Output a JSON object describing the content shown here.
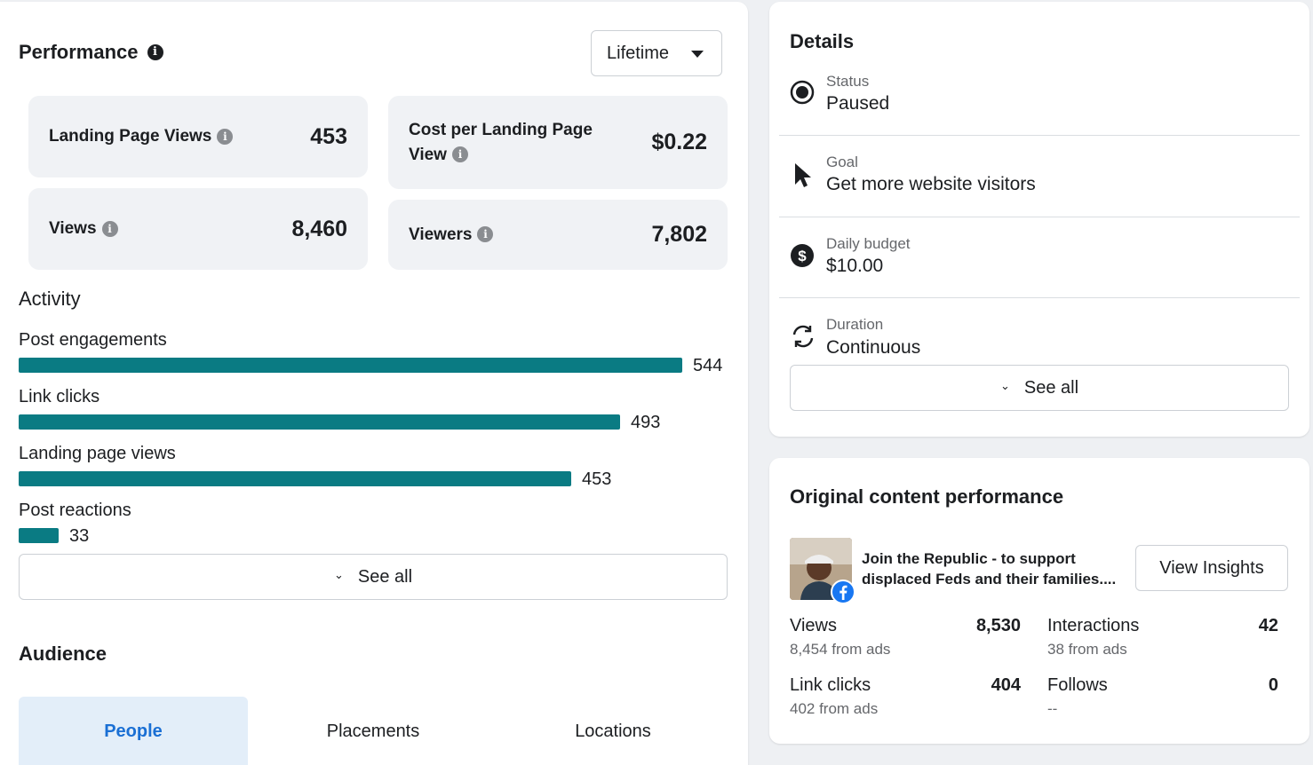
{
  "colors": {
    "bar": "#0a7b83",
    "tab_active_bg": "#e3eef9",
    "tab_active_text": "#1a6fd4",
    "facebook_blue": "#1877f2"
  },
  "performance": {
    "title": "Performance",
    "info_icon": "info-icon",
    "period": "Lifetime",
    "tiles": [
      {
        "label": "Landing Page Views",
        "value": "453"
      },
      {
        "label": "Cost per Landing Page View",
        "value": "$0.22"
      },
      {
        "label": "Views",
        "value": "8,460"
      },
      {
        "label": "Viewers",
        "value": "7,802"
      }
    ]
  },
  "activity": {
    "title": "Activity",
    "items": [
      {
        "label": "Post engagements",
        "value": "544",
        "amount": 544
      },
      {
        "label": "Link clicks",
        "value": "493",
        "amount": 493
      },
      {
        "label": "Landing page views",
        "value": "453",
        "amount": 453
      },
      {
        "label": "Post reactions",
        "value": "33",
        "amount": 33
      }
    ],
    "see_all": "See all"
  },
  "audience": {
    "title": "Audience",
    "tabs": [
      "People",
      "Placements",
      "Locations"
    ],
    "active_tab": "People"
  },
  "details": {
    "title": "Details",
    "rows": [
      {
        "label": "Status",
        "value": "Paused",
        "icon": "radio-icon"
      },
      {
        "label": "Goal",
        "value": "Get more website visitors",
        "icon": "cursor-icon"
      },
      {
        "label": "Daily budget",
        "value": "$10.00",
        "icon": "dollar-icon"
      },
      {
        "label": "Duration",
        "value": "Continuous",
        "icon": "refresh-icon"
      }
    ],
    "see_all": "See all"
  },
  "original_content": {
    "title": "Original content performance",
    "post_text": "Join the Republic - to support displaced Feds and their families....",
    "view_insights": "View Insights",
    "metrics": [
      {
        "label": "Views",
        "value": "8,530",
        "sub": "8,454 from ads"
      },
      {
        "label": "Interactions",
        "value": "42",
        "sub": "38 from ads"
      },
      {
        "label": "Link clicks",
        "value": "404",
        "sub": "402 from ads"
      },
      {
        "label": "Follows",
        "value": "0",
        "sub": "--"
      }
    ]
  }
}
